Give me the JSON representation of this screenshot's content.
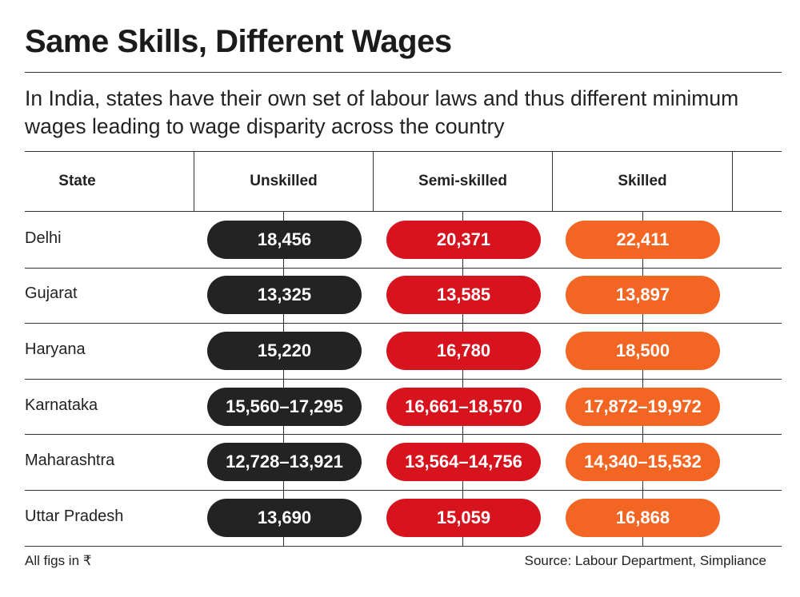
{
  "chart_data": {
    "type": "table",
    "title": "Same Skills, Different Wages",
    "subtitle": "In India, states have their own set of labour laws and thus different minimum wages leading to wage disparity across the country",
    "columns": [
      "State",
      "Unskilled",
      "Semi-skilled",
      "Skilled"
    ],
    "rows": [
      {
        "state": "Delhi",
        "values": [
          "18,456",
          "20,371",
          "22,411"
        ]
      },
      {
        "state": "Gujarat",
        "values": [
          "13,325",
          "13,585",
          "13,897"
        ]
      },
      {
        "state": "Haryana",
        "values": [
          "15,220",
          "16,780",
          "18,500"
        ]
      },
      {
        "state": "Karnataka",
        "values": [
          "15,560–17,295",
          "16,661–18,570",
          "17,872–19,972"
        ]
      },
      {
        "state": "Maharashtra",
        "values": [
          "12,728–13,921",
          "13,564–14,756",
          "14,340–15,532"
        ]
      },
      {
        "state": "Uttar Pradesh",
        "values": [
          "13,690",
          "15,059",
          "16,868"
        ]
      }
    ],
    "colors": [
      "#232323",
      "#d7141d",
      "#f26522"
    ],
    "footnote": "All figs in ₹",
    "source": "Source: Labour Department, Simpliance"
  }
}
